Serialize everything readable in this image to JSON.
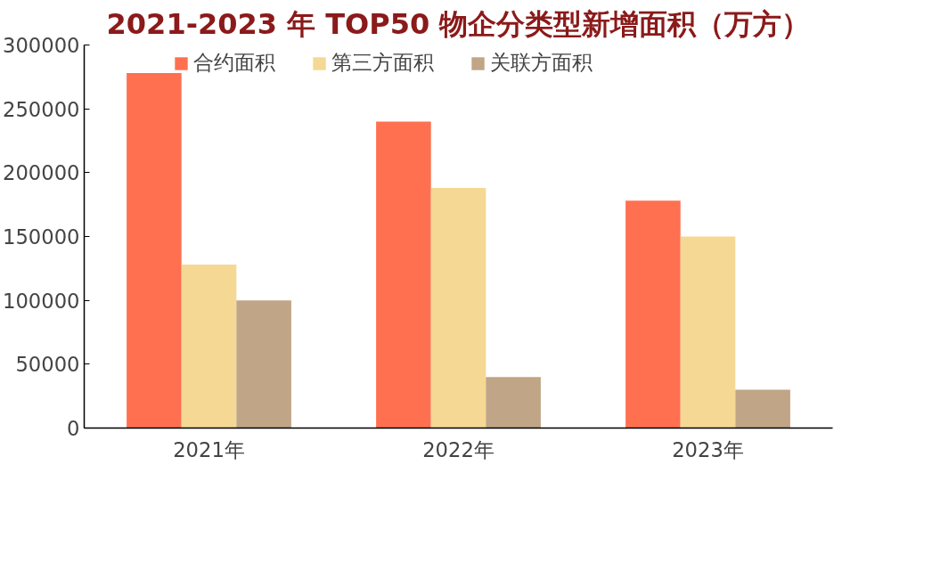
{
  "chart_data": {
    "type": "bar",
    "title": "2021-2023 年 TOP50 物企分类型新增面积（万方）",
    "categories": [
      "2021年",
      "2022年",
      "2023年"
    ],
    "series": [
      {
        "name": "合约面积",
        "color": "#ff7050",
        "values": [
          278000,
          240000,
          178000
        ]
      },
      {
        "name": "第三方面积",
        "color": "#f5d893",
        "values": [
          128000,
          188000,
          150000
        ]
      },
      {
        "name": "关联方面积",
        "color": "#c0a586",
        "values": [
          100000,
          40000,
          30000
        ]
      }
    ],
    "ylim": [
      0,
      300000
    ],
    "yticks": [
      0,
      50000,
      100000,
      150000,
      200000,
      250000,
      300000
    ],
    "grid": false,
    "legend": "top"
  }
}
